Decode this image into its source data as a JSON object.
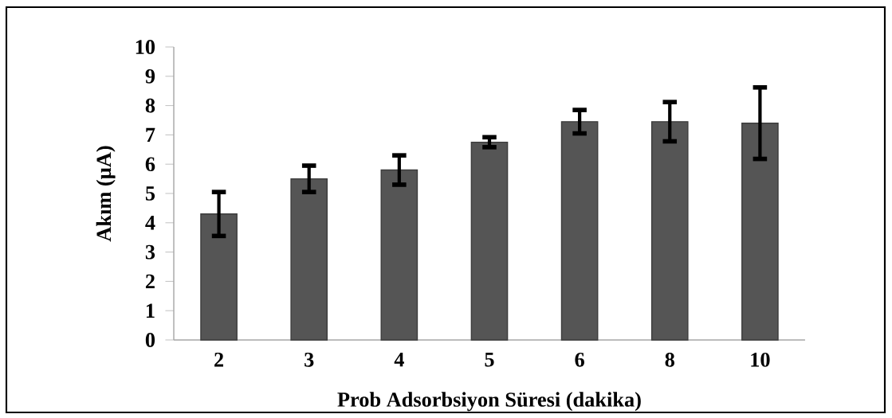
{
  "chart_data": {
    "type": "bar",
    "xlabel": "Prob Adsorbsiyon Süresi (dakika)",
    "ylabel": "Akım (µA)",
    "categories": [
      "2",
      "3",
      "4",
      "5",
      "6",
      "8",
      "10"
    ],
    "values": [
      4.3,
      5.5,
      5.8,
      6.75,
      7.45,
      7.45,
      7.4
    ],
    "errors": [
      0.75,
      0.45,
      0.5,
      0.17,
      0.4,
      0.67,
      1.22
    ],
    "color": "#555555",
    "ylim": [
      0,
      10
    ],
    "yticks": [
      0,
      1,
      2,
      3,
      4,
      5,
      6,
      7,
      8,
      9,
      10
    ],
    "grid": false
  }
}
